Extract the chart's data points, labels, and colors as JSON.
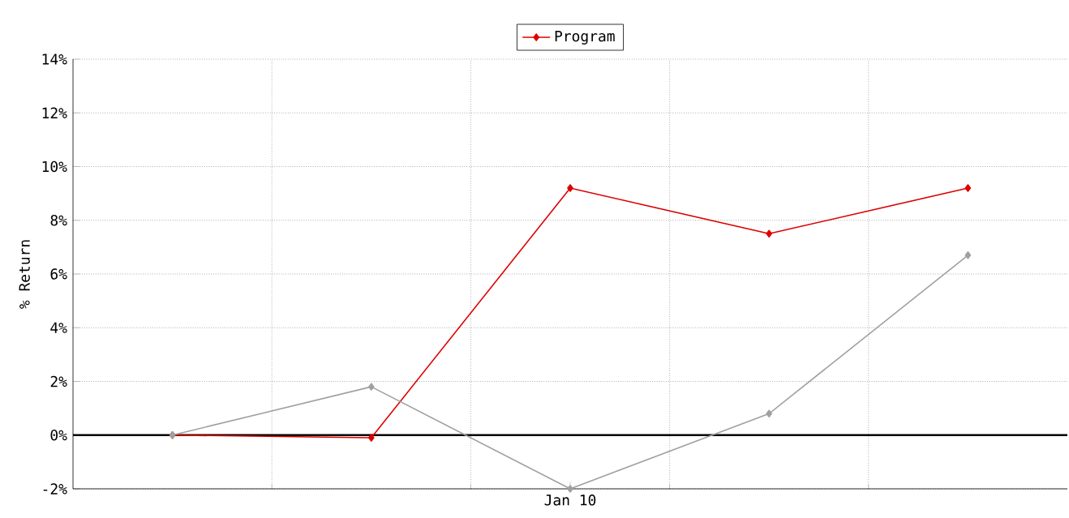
{
  "chart_data": {
    "type": "line",
    "ylabel": "% Return",
    "categories": [
      null,
      null,
      "Jan 10",
      null,
      null
    ],
    "series": [
      {
        "name": "Program",
        "color": "#dd0000",
        "values": [
          0,
          -0.1,
          9.2,
          7.5,
          9.2
        ]
      },
      {
        "color": "#a0a0a0",
        "values": [
          0,
          1.8,
          -2.0,
          0.8,
          6.7
        ]
      }
    ],
    "ylim": [
      -2,
      14
    ],
    "yticks": [
      {
        "value": -2,
        "label": "-2%"
      },
      {
        "value": 0,
        "label": "0%"
      },
      {
        "value": 2,
        "label": "2%"
      },
      {
        "value": 4,
        "label": "4%"
      },
      {
        "value": 6,
        "label": "6%"
      },
      {
        "value": 8,
        "label": "8%"
      },
      {
        "value": 10,
        "label": "10%"
      },
      {
        "value": 12,
        "label": "12%"
      },
      {
        "value": 14,
        "label": "14%"
      }
    ],
    "ref_lines": [
      {
        "axis": "y",
        "value": 0,
        "color": "#000000"
      }
    ],
    "grid": true,
    "legend": "top",
    "marker": "diamond",
    "line_style": "solid"
  }
}
